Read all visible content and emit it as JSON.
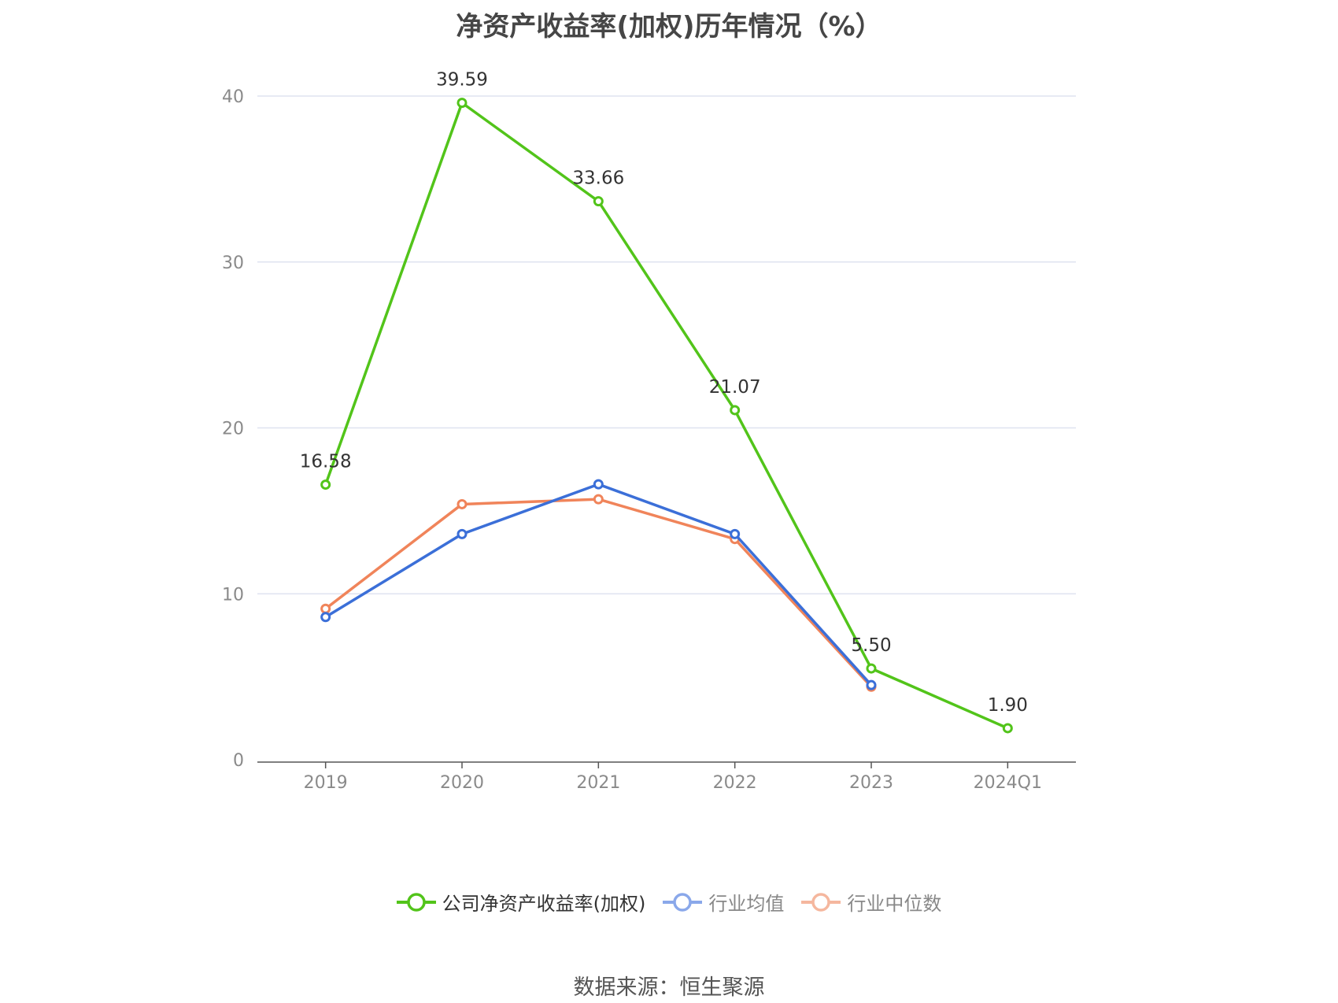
{
  "chart_data": {
    "type": "line",
    "title": "净资产收益率(加权)历年情况（%）",
    "categories": [
      "2019",
      "2020",
      "2021",
      "2022",
      "2023",
      "2024Q1"
    ],
    "ylim": [
      0,
      40
    ],
    "yticks": [
      0,
      10,
      20,
      30,
      40
    ],
    "grid": true,
    "legend_position": "bottom",
    "series": [
      {
        "name": "公司净资产收益率(加权)",
        "color": "#52c41a",
        "values": [
          16.58,
          39.59,
          33.66,
          21.07,
          5.5,
          1.9
        ],
        "labels": [
          "16.58",
          "39.59",
          "33.66",
          "21.07",
          "5.50",
          "1.90"
        ]
      },
      {
        "name": "行业均值",
        "color": "#3b6fd8",
        "legend_color": "#8aa8ea",
        "values": [
          8.6,
          13.6,
          16.6,
          13.6,
          4.5,
          null
        ]
      },
      {
        "name": "行业中位数",
        "color": "#f0845a",
        "legend_color": "#f5b79e",
        "values": [
          9.1,
          15.4,
          15.7,
          13.3,
          4.4,
          null
        ]
      }
    ]
  },
  "source": "数据来源：恒生聚源"
}
